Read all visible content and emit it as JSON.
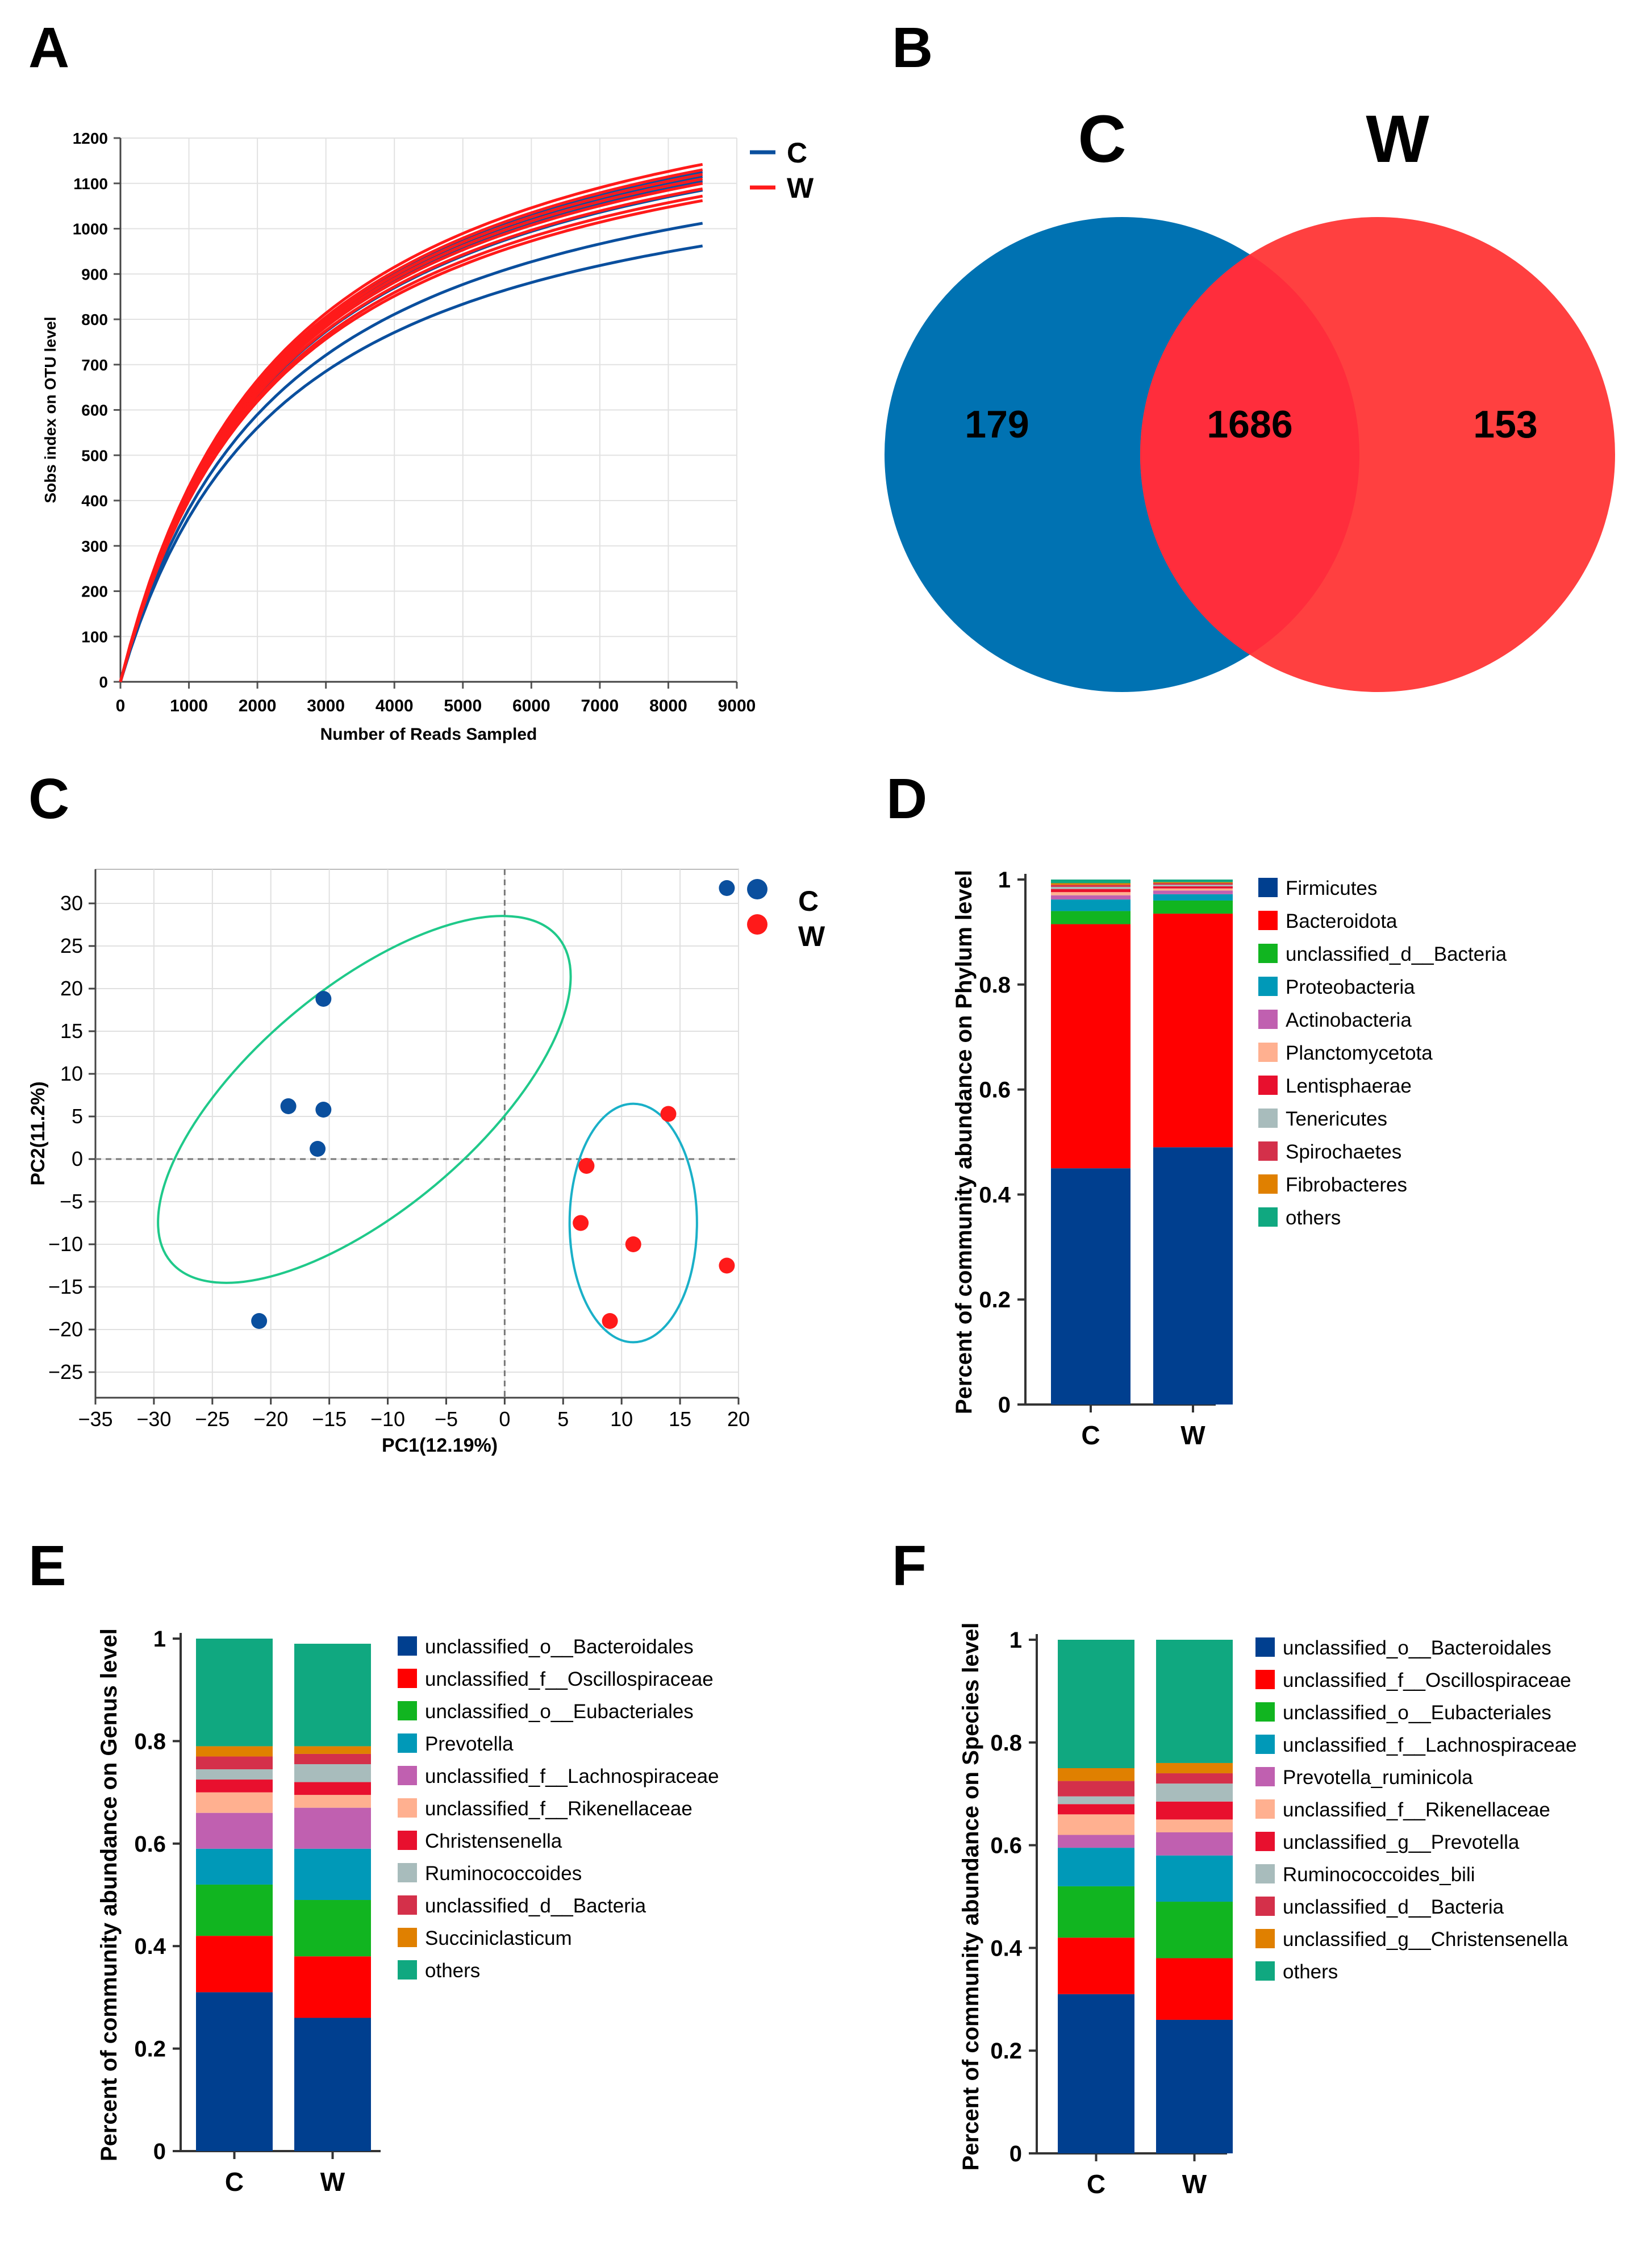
{
  "panels": {
    "A": {
      "letter": "A"
    },
    "B": {
      "letter": "B"
    },
    "C": {
      "letter": "C"
    },
    "D": {
      "letter": "D"
    },
    "E": {
      "letter": "E"
    },
    "F": {
      "letter": "F"
    }
  },
  "colors": {
    "C": "#0a4f9e",
    "W": "#ff1a1a",
    "venn_C": "#0072b2",
    "venn_W": "#ff4040",
    "venn_overlap": "#ff2d3c",
    "ellipse1": "#1fc98a",
    "ellipse2": "#1ab0c8"
  },
  "chart_data": [
    {
      "panel": "A",
      "type": "line",
      "title": "",
      "xlabel": "Number of Reads Sampled",
      "ylabel": "Sobs index on OTU level",
      "xlim": [
        0,
        9000
      ],
      "ylim": [
        0,
        1200
      ],
      "xticks": [
        "0",
        "1000",
        "2000",
        "3000",
        "4000",
        "5000",
        "6000",
        "7000",
        "8000",
        "9000"
      ],
      "yticks": [
        "0",
        "100",
        "200",
        "300",
        "400",
        "500",
        "600",
        "700",
        "800",
        "900",
        "1000",
        "1100",
        "1200"
      ],
      "legend": [
        {
          "name": "C",
          "color": "#0a4f9e"
        },
        {
          "name": "W",
          "color": "#ff1a1a"
        }
      ],
      "legend_position": "top-right",
      "x_end": 8500,
      "series": [
        {
          "group": "C",
          "final": 1125
        },
        {
          "group": "C",
          "final": 1115
        },
        {
          "group": "C",
          "final": 1105
        },
        {
          "group": "C",
          "final": 1085
        },
        {
          "group": "C",
          "final": 1012
        },
        {
          "group": "C",
          "final": 962
        },
        {
          "group": "W",
          "final": 1142
        },
        {
          "group": "W",
          "final": 1130
        },
        {
          "group": "W",
          "final": 1120
        },
        {
          "group": "W",
          "final": 1110
        },
        {
          "group": "W",
          "final": 1100
        },
        {
          "group": "W",
          "final": 1088
        },
        {
          "group": "W",
          "final": 1072
        },
        {
          "group": "W",
          "final": 1062
        }
      ]
    },
    {
      "panel": "B",
      "type": "venn",
      "sets": [
        "C",
        "W"
      ],
      "values": {
        "C_only": "179",
        "both": "1686",
        "W_only": "153"
      }
    },
    {
      "panel": "C",
      "type": "scatter",
      "xlabel": "PC1(12.19%)",
      "ylabel": "PC2(11.2%)",
      "xlim": [
        -35,
        20
      ],
      "ylim": [
        -28,
        34
      ],
      "xticks": [
        "−35",
        "−30",
        "−25",
        "−20",
        "−15",
        "−10",
        "−5",
        "0",
        "5",
        "10",
        "15",
        "20"
      ],
      "yticks": [
        "−25",
        "−20",
        "−15",
        "−10",
        "−5",
        "0",
        "5",
        "10",
        "15",
        "20",
        "25",
        "30"
      ],
      "legend": [
        {
          "name": "C",
          "color": "#0a4f9e"
        },
        {
          "name": "W",
          "color": "#ff1a1a"
        }
      ],
      "legend_position": "top-right",
      "series": [
        {
          "name": "C",
          "points": [
            [
              -15.5,
              18.8
            ],
            [
              -18.5,
              6.2
            ],
            [
              -15.5,
              5.8
            ],
            [
              -16,
              1.2
            ],
            [
              -21,
              -19
            ],
            [
              19,
              31.8
            ]
          ]
        },
        {
          "name": "W",
          "points": [
            [
              14,
              5.3
            ],
            [
              7,
              -0.8
            ],
            [
              6.5,
              -7.5
            ],
            [
              11,
              -10
            ],
            [
              19,
              -12.5
            ],
            [
              9,
              -19
            ]
          ]
        }
      ],
      "ellipses": [
        {
          "cx": -12,
          "cy": 7,
          "rx": 25,
          "ry": 11,
          "angle_deg": 40
        },
        {
          "cx": 11,
          "cy": -7.5,
          "rx": 6.3,
          "ry": 11.8,
          "angle_deg": 0
        }
      ]
    },
    {
      "panel": "D",
      "type": "bar",
      "stacked": true,
      "categories": [
        "C",
        "W"
      ],
      "ylabel": "Percent of community abundance on Phylum level",
      "ylim": [
        0,
        1
      ],
      "yticks": [
        "0",
        "0.2",
        "0.4",
        "0.6",
        "0.8",
        "1"
      ],
      "series": [
        {
          "name": "Firmicutes",
          "color": "#003f8f",
          "values": [
            0.45,
            0.49
          ]
        },
        {
          "name": "Bacteroidota",
          "color": "#ff0000",
          "values": [
            0.465,
            0.445
          ]
        },
        {
          "name": "unclassified_d__Bacteria",
          "color": "#11b520",
          "values": [
            0.025,
            0.025
          ]
        },
        {
          "name": "Proteobacteria",
          "color": "#0099b8",
          "values": [
            0.022,
            0.012
          ]
        },
        {
          "name": "Actinobacteria",
          "color": "#c060b0",
          "values": [
            0.008,
            0.007
          ]
        },
        {
          "name": "Planctomycetota",
          "color": "#ffb090",
          "values": [
            0.006,
            0.004
          ]
        },
        {
          "name": "Lentisphaerae",
          "color": "#e8102e",
          "values": [
            0.006,
            0.004
          ]
        },
        {
          "name": "Tenericutes",
          "color": "#a8bcbc",
          "values": [
            0.004,
            0.003
          ]
        },
        {
          "name": "Spirochaetes",
          "color": "#d4304a",
          "values": [
            0.004,
            0.003
          ]
        },
        {
          "name": "Fibrobacteres",
          "color": "#e08000",
          "values": [
            0.003,
            0.002
          ]
        },
        {
          "name": "others",
          "color": "#10a880",
          "values": [
            0.007,
            0.005
          ]
        }
      ]
    },
    {
      "panel": "E",
      "type": "bar",
      "stacked": true,
      "categories": [
        "C",
        "W"
      ],
      "ylabel": "Percent of community abundance on Genus level",
      "ylim": [
        0,
        1
      ],
      "yticks": [
        "0",
        "0.2",
        "0.4",
        "0.6",
        "0.8",
        "1"
      ],
      "series": [
        {
          "name": "unclassified_o__Bacteroidales",
          "color": "#003f8f",
          "values": [
            0.31,
            0.26
          ]
        },
        {
          "name": "unclassified_f__Oscillospiraceae",
          "color": "#ff0000",
          "values": [
            0.11,
            0.12
          ]
        },
        {
          "name": "unclassified_o__Eubacteriales",
          "color": "#11b520",
          "values": [
            0.1,
            0.11
          ]
        },
        {
          "name": "Prevotella",
          "color": "#0099b8",
          "values": [
            0.07,
            0.1
          ]
        },
        {
          "name": "unclassified_f__Lachnospiraceae",
          "color": "#c060b0",
          "values": [
            0.07,
            0.08
          ]
        },
        {
          "name": "unclassified_f__Rikenellaceae",
          "color": "#ffb090",
          "values": [
            0.04,
            0.025
          ]
        },
        {
          "name": "Christensenella",
          "color": "#e8102e",
          "values": [
            0.025,
            0.025
          ]
        },
        {
          "name": "Ruminococcoides",
          "color": "#a8bcbc",
          "values": [
            0.02,
            0.035
          ]
        },
        {
          "name": "unclassified_d__Bacteria",
          "color": "#d4304a",
          "values": [
            0.025,
            0.02
          ]
        },
        {
          "name": "Succiniclasticum",
          "color": "#e08000",
          "values": [
            0.02,
            0.015
          ]
        },
        {
          "name": "others",
          "color": "#10a880",
          "values": [
            0.21,
            0.2
          ]
        }
      ]
    },
    {
      "panel": "F",
      "type": "bar",
      "stacked": true,
      "categories": [
        "C",
        "W"
      ],
      "ylabel": "Percent of community abundance on Species level",
      "ylim": [
        0,
        1
      ],
      "yticks": [
        "0",
        "0.2",
        "0.4",
        "0.6",
        "0.8",
        "1"
      ],
      "series": [
        {
          "name": "unclassified_o__Bacteroidales",
          "color": "#003f8f",
          "values": [
            0.31,
            0.26
          ]
        },
        {
          "name": "unclassified_f__Oscillospiraceae",
          "color": "#ff0000",
          "values": [
            0.11,
            0.12
          ]
        },
        {
          "name": "unclassified_o__Eubacteriales",
          "color": "#11b520",
          "values": [
            0.1,
            0.11
          ]
        },
        {
          "name": "unclassified_f__Lachnospiraceae",
          "color": "#0099b8",
          "values": [
            0.075,
            0.09
          ]
        },
        {
          "name": "Prevotella_ruminicola",
          "color": "#c060b0",
          "values": [
            0.025,
            0.045
          ]
        },
        {
          "name": "unclassified_f__Rikenellaceae",
          "color": "#ffb090",
          "values": [
            0.04,
            0.025
          ]
        },
        {
          "name": "unclassified_g__Prevotella",
          "color": "#e8102e",
          "values": [
            0.02,
            0.035
          ]
        },
        {
          "name": "Ruminococcoides_bili",
          "color": "#a8bcbc",
          "values": [
            0.015,
            0.035
          ]
        },
        {
          "name": "unclassified_d__Bacteria",
          "color": "#d4304a",
          "values": [
            0.03,
            0.02
          ]
        },
        {
          "name": "unclassified_g__Christensenella",
          "color": "#e08000",
          "values": [
            0.025,
            0.02
          ]
        },
        {
          "name": "others",
          "color": "#10a880",
          "values": [
            0.25,
            0.24
          ]
        }
      ]
    }
  ]
}
